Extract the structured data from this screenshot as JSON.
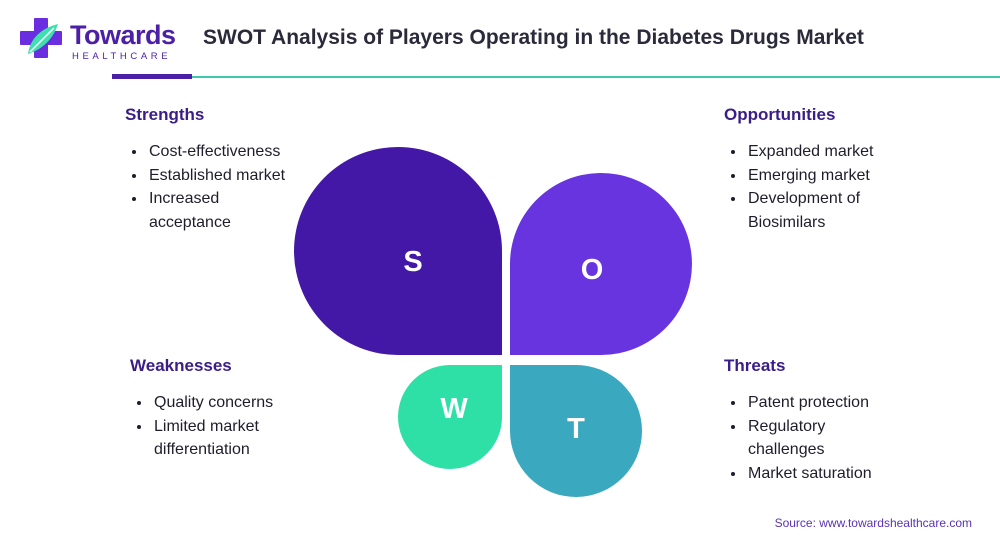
{
  "brand": {
    "name": "Towards",
    "tagline": "HEALTHCARE"
  },
  "title": "SWOT Analysis of Players Operating in the Diabetes Drugs Market",
  "swot": {
    "strengths": {
      "heading": "Strengths",
      "letter": "S",
      "color": "#4318a6",
      "items": [
        "Cost-effectiveness",
        "Established market",
        "Increased acceptance"
      ]
    },
    "opportunities": {
      "heading": "Opportunities",
      "letter": "O",
      "color": "#6834e0",
      "items": [
        "Expanded market",
        "Emerging market",
        "Development of Biosimilars"
      ]
    },
    "weaknesses": {
      "heading": "Weaknesses",
      "letter": "W",
      "color": "#2fe0a6",
      "items": [
        "Quality concerns",
        "Limited market differentiation"
      ]
    },
    "threats": {
      "heading": "Threats",
      "letter": "T",
      "color": "#3aa8bf",
      "items": [
        "Patent protection",
        "Regulatory challenges",
        "Market saturation"
      ]
    }
  },
  "source": "Source: www.towardshealthcare.com"
}
